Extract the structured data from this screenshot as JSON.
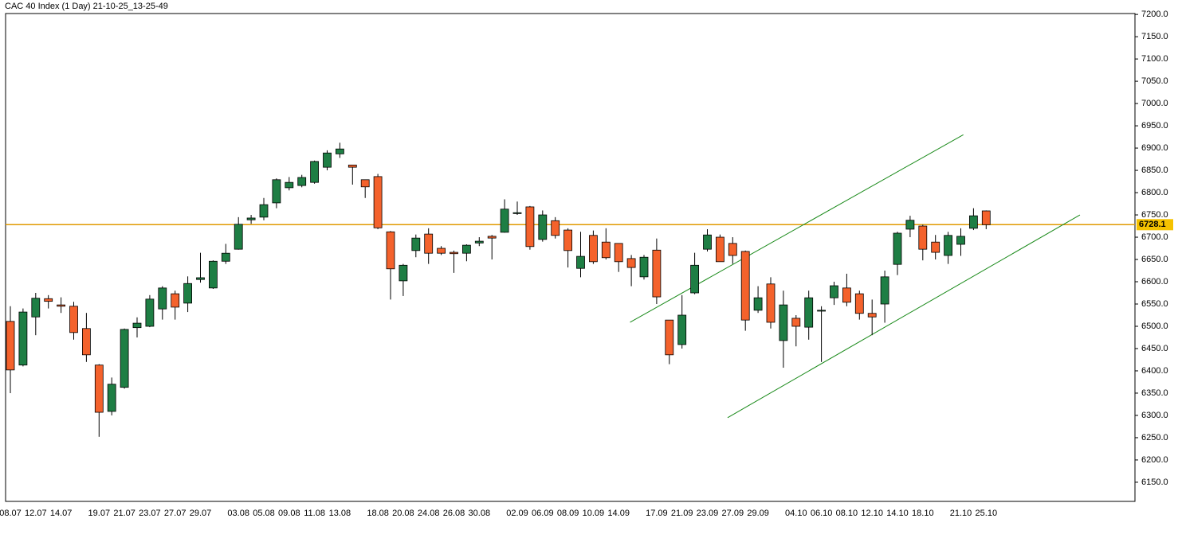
{
  "chart_data": {
    "type": "candlestick",
    "title": "CAC 40 Index (1 Day) 21-10-25_13-25-49",
    "categories": [
      "08.07",
      null,
      "12.07",
      null,
      "14.07",
      null,
      null,
      "19.07",
      null,
      "21.07",
      null,
      "23.07",
      null,
      "27.07",
      null,
      "29.07",
      null,
      null,
      "03.08",
      null,
      "05.08",
      null,
      "09.08",
      null,
      "11.08",
      null,
      "13.08",
      null,
      null,
      "18.08",
      null,
      "20.08",
      null,
      "24.08",
      null,
      "26.08",
      null,
      "30.08",
      null,
      null,
      "02.09",
      null,
      "06.09",
      null,
      "08.09",
      null,
      "10.09",
      null,
      "14.09",
      null,
      null,
      "17.09",
      null,
      "21.09",
      null,
      "23.09",
      null,
      "27.09",
      null,
      "29.09",
      null,
      null,
      "04.10",
      null,
      "06.10",
      null,
      "08.10",
      null,
      "12.10",
      null,
      "14.10",
      null,
      "18.10",
      null,
      null,
      "21.10",
      null,
      "25.10"
    ],
    "open": [
      6511,
      6413,
      6521,
      6562,
      6548,
      6545,
      6495,
      6413,
      6309,
      6363,
      6497,
      6500,
      6539,
      6573,
      6552,
      6605,
      6586,
      6646,
      6673,
      6739,
      6745,
      6777,
      6811,
      6816,
      6823,
      6857,
      6887,
      6862,
      6829,
      6836,
      6712,
      6602,
      6670,
      6707,
      6675,
      6666,
      6664,
      6687,
      6702,
      6711,
      6753,
      6768,
      6695,
      6737,
      6716,
      6630,
      6704,
      6689,
      6686,
      6652,
      6611,
      6671,
      6514,
      6459,
      6575,
      6673,
      6700,
      6686,
      6668,
      6536,
      6595,
      6468,
      6518,
      6498,
      6534,
      6564,
      6586,
      6573,
      6529,
      6550,
      6639,
      6718,
      6725,
      6689,
      6659,
      6684,
      6720,
      6759
    ],
    "high": [
      6545,
      6540,
      6575,
      6570,
      6565,
      6555,
      6530,
      6415,
      6385,
      6495,
      6520,
      6570,
      6590,
      6580,
      6612,
      6665,
      6648,
      6685,
      6745,
      6750,
      6788,
      6832,
      6835,
      6840,
      6872,
      6895,
      6912,
      6862,
      6829,
      6842,
      6714,
      6640,
      6706,
      6720,
      6680,
      6670,
      6684,
      6700,
      6705,
      6785,
      6780,
      6770,
      6760,
      6745,
      6720,
      6712,
      6715,
      6720,
      6686,
      6660,
      6660,
      6697,
      6514,
      6570,
      6665,
      6718,
      6706,
      6700,
      6670,
      6590,
      6610,
      6580,
      6525,
      6580,
      6545,
      6600,
      6618,
      6580,
      6560,
      6625,
      6712,
      6748,
      6728,
      6705,
      6712,
      6720,
      6765,
      6760
    ],
    "low": [
      6350,
      6410,
      6480,
      6540,
      6530,
      6470,
      6420,
      6252,
      6300,
      6360,
      6475,
      6498,
      6515,
      6515,
      6532,
      6598,
      6584,
      6640,
      6672,
      6730,
      6738,
      6765,
      6805,
      6812,
      6820,
      6850,
      6878,
      6818,
      6788,
      6718,
      6560,
      6568,
      6655,
      6640,
      6660,
      6620,
      6646,
      6680,
      6650,
      6710,
      6750,
      6672,
      6690,
      6697,
      6632,
      6610,
      6640,
      6650,
      6622,
      6590,
      6605,
      6550,
      6415,
      6450,
      6572,
      6668,
      6645,
      6640,
      6490,
      6530,
      6495,
      6407,
      6455,
      6470,
      6420,
      6548,
      6545,
      6515,
      6480,
      6508,
      6615,
      6700,
      6648,
      6650,
      6640,
      6658,
      6716,
      6718
    ],
    "close": [
      6402,
      6532,
      6563,
      6556,
      6545,
      6486,
      6436,
      6307,
      6370,
      6493,
      6507,
      6561,
      6586,
      6543,
      6596,
      6609,
      6646,
      6664,
      6729,
      6743,
      6773,
      6829,
      6823,
      6834,
      6870,
      6889,
      6898,
      6857,
      6813,
      6721,
      6629,
      6637,
      6698,
      6664,
      6664,
      6663,
      6682,
      6691,
      6698,
      6763,
      6755,
      6679,
      6750,
      6704,
      6670,
      6657,
      6645,
      6654,
      6645,
      6632,
      6655,
      6566,
      6436,
      6525,
      6637,
      6705,
      6645,
      6659,
      6514,
      6564,
      6509,
      6548,
      6500,
      6564,
      6536,
      6591,
      6554,
      6529,
      6521,
      6611,
      6709,
      6738,
      6673,
      6666,
      6704,
      6702,
      6748,
      6728.1
    ],
    "up_color": "#1e7e44",
    "down_color": "#f4622c",
    "ylim": [
      6107,
      7202
    ],
    "yticks": [
      {
        "value": 6150,
        "label": "6150.0"
      },
      {
        "value": 6200,
        "label": "6200.0"
      },
      {
        "value": 6250,
        "label": "6250.0"
      },
      {
        "value": 6300,
        "label": "6300.0"
      },
      {
        "value": 6350,
        "label": "6350.0"
      },
      {
        "value": 6400,
        "label": "6400.0"
      },
      {
        "value": 6450,
        "label": "6450.0"
      },
      {
        "value": 6500,
        "label": "6500.0"
      },
      {
        "value": 6550,
        "label": "6550.0"
      },
      {
        "value": 6600,
        "label": "6600.0"
      },
      {
        "value": 6650,
        "label": "6650.0"
      },
      {
        "value": 6700,
        "label": "6700.0"
      },
      {
        "value": 6750,
        "label": "6750.0"
      },
      {
        "value": 6800,
        "label": "6800.0"
      },
      {
        "value": 6850,
        "label": "6850.0"
      },
      {
        "value": 6900,
        "label": "6900.0"
      },
      {
        "value": 6950,
        "label": "6950.0"
      },
      {
        "value": 7000,
        "label": "7000.0"
      },
      {
        "value": 7050,
        "label": "7050.0"
      },
      {
        "value": 7100,
        "label": "7100.0"
      },
      {
        "value": 7150,
        "label": "7150.0"
      },
      {
        "value": 7200,
        "label": "7200.0"
      }
    ],
    "price_line": {
      "value": 6728.1,
      "color": "#e09a00"
    },
    "trend_lines": [
      {
        "x": [
          48.9,
          75.2
        ],
        "values": [
          6509,
          6930
        ],
        "color": "#1a8a1a"
      },
      {
        "x": [
          56.6,
          84.4
        ],
        "values": [
          6295,
          6750
        ],
        "color": "#1a8a1a"
      }
    ]
  }
}
